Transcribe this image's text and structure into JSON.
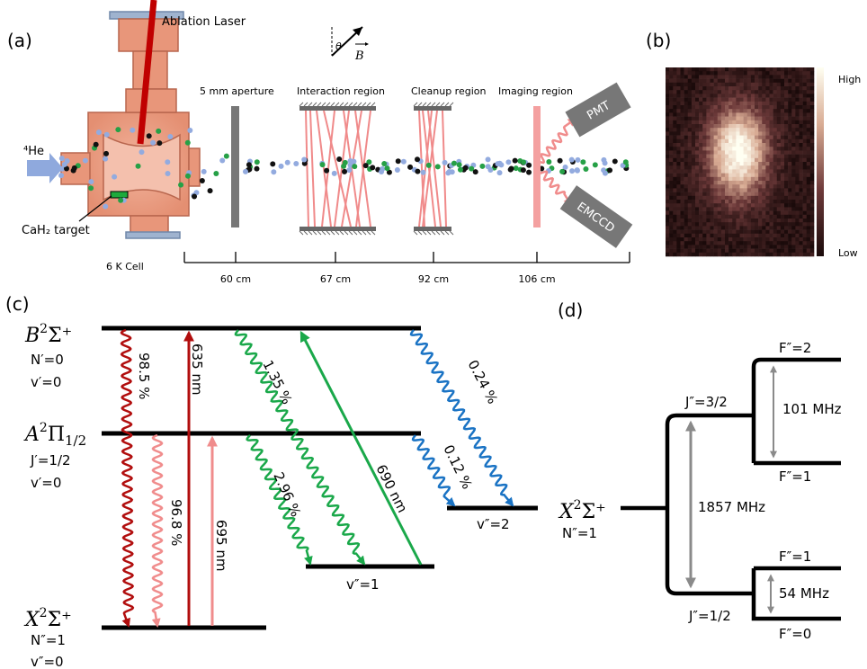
{
  "panels": [
    "(a)",
    "(b)",
    "(c)",
    "(d)"
  ],
  "apparatus": {
    "ablation_laser": "Ablation Laser",
    "helium": "⁴He",
    "target": "CaH₂ target",
    "cell": "6 K Cell",
    "aperture": "5 mm aperture",
    "interaction": "Interaction region",
    "cleanup": "Cleanup region",
    "imaging": "Imaging region",
    "pmt": "PMT",
    "emccd": "EMCCD",
    "field_angle": "θ",
    "field": "B",
    "distances": [
      "60 cm",
      "67 cm",
      "92 cm",
      "106 cm"
    ]
  },
  "image": {
    "high": "High",
    "low": "Low"
  },
  "levels": [
    {
      "letter": "B",
      "mult": "2",
      "term": "Σ⁺",
      "qn": "N′=0",
      "vib": "v′=0"
    },
    {
      "letter": "A",
      "mult": "2",
      "term": "Π",
      "sub": "1/2",
      "qn": "J′=1/2",
      "vib": "v′=0"
    },
    {
      "letter": "X",
      "mult": "2",
      "term": "Σ⁺",
      "qn": "N″=1",
      "vib": "v″=0"
    }
  ],
  "vibrational": [
    "v″=1",
    "v″=2"
  ],
  "transitions": [
    "98.5 %",
    "96.8 %",
    "635 nm",
    "695 nm",
    "1.35 %",
    "2.96 %",
    "690 nm",
    "0.24 %",
    "0.12 %"
  ],
  "hyperfine": {
    "state": {
      "letter": "X",
      "mult": "2",
      "term": "Σ⁺",
      "qn": "N″=1"
    },
    "j_upper": "J″=3/2",
    "j_lower": "J″=1/2",
    "f_levels": [
      "F″=2",
      "F″=1",
      "F″=1",
      "F″=0"
    ],
    "splittings": [
      "1857 MHz",
      "101 MHz",
      "54 MHz"
    ]
  }
}
